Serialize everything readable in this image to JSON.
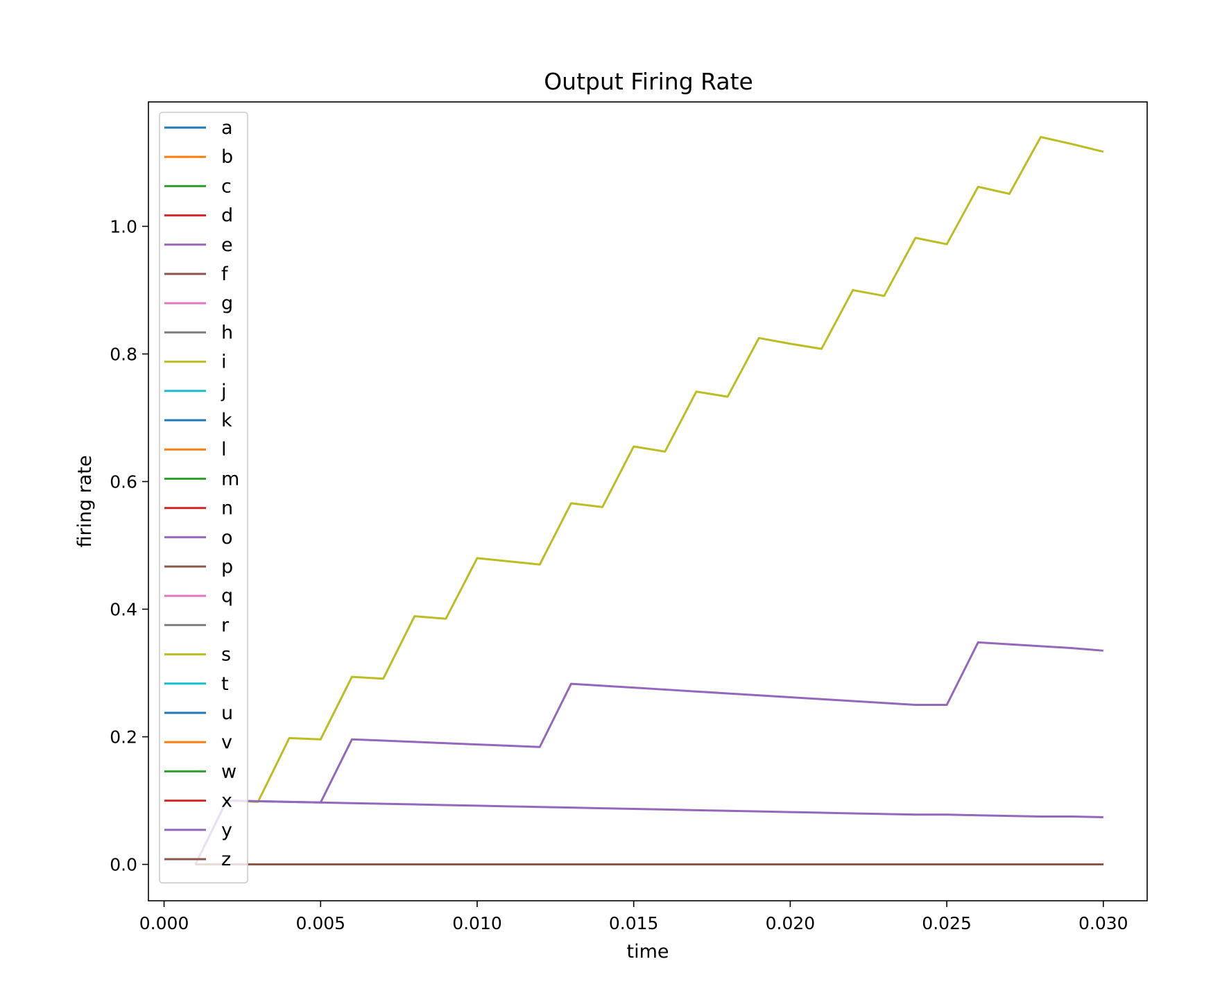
{
  "chart_data": {
    "type": "line",
    "title": "Output Firing Rate",
    "xlabel": "time",
    "ylabel": "firing rate",
    "xlim": [
      -0.0005,
      0.0314
    ],
    "ylim": [
      -0.057,
      1.195
    ],
    "xticks": [
      0.0,
      0.005,
      0.01,
      0.015,
      0.02,
      0.025,
      0.03
    ],
    "xtick_labels": [
      "0.000",
      "0.005",
      "0.010",
      "0.015",
      "0.020",
      "0.025",
      "0.030"
    ],
    "yticks": [
      0.0,
      0.2,
      0.4,
      0.6,
      0.8,
      1.0
    ],
    "ytick_labels": [
      "0.0",
      "0.2",
      "0.4",
      "0.6",
      "0.8",
      "1.0"
    ],
    "grid": false,
    "legend_position": "upper-left",
    "x": [
      0.001,
      0.002,
      0.003,
      0.004,
      0.005,
      0.006,
      0.007,
      0.008,
      0.009,
      0.01,
      0.011,
      0.012,
      0.013,
      0.014,
      0.015,
      0.016,
      0.017,
      0.018,
      0.019,
      0.02,
      0.021,
      0.022,
      0.023,
      0.024,
      0.025,
      0.026,
      0.027,
      0.028,
      0.029,
      0.03
    ],
    "series": [
      {
        "name": "a",
        "color": "#1f77b4",
        "values": [
          0,
          0,
          0,
          0,
          0,
          0,
          0,
          0,
          0,
          0,
          0,
          0,
          0,
          0,
          0,
          0,
          0,
          0,
          0,
          0,
          0,
          0,
          0,
          0,
          0,
          0,
          0,
          0,
          0,
          0
        ]
      },
      {
        "name": "b",
        "color": "#ff7f0e",
        "values": [
          0,
          0,
          0,
          0,
          0,
          0,
          0,
          0,
          0,
          0,
          0,
          0,
          0,
          0,
          0,
          0,
          0,
          0,
          0,
          0,
          0,
          0,
          0,
          0,
          0,
          0,
          0,
          0,
          0,
          0
        ]
      },
      {
        "name": "c",
        "color": "#2ca02c",
        "values": [
          0,
          0,
          0,
          0,
          0,
          0,
          0,
          0,
          0,
          0,
          0,
          0,
          0,
          0,
          0,
          0,
          0,
          0,
          0,
          0,
          0,
          0,
          0,
          0,
          0,
          0,
          0,
          0,
          0,
          0
        ]
      },
      {
        "name": "d",
        "color": "#d62728",
        "values": [
          0,
          0,
          0,
          0,
          0,
          0,
          0,
          0,
          0,
          0,
          0,
          0,
          0,
          0,
          0,
          0,
          0,
          0,
          0,
          0,
          0,
          0,
          0,
          0,
          0,
          0,
          0,
          0,
          0,
          0
        ]
      },
      {
        "name": "e",
        "color": "#9467bd",
        "values": [
          0,
          0.1,
          0.099,
          0.098,
          0.097,
          0.196,
          0.194,
          0.192,
          0.19,
          0.188,
          0.186,
          0.184,
          0.283,
          0.28,
          0.277,
          0.274,
          0.271,
          0.268,
          0.265,
          0.262,
          0.259,
          0.256,
          0.253,
          0.25,
          0.25,
          0.348,
          0.345,
          0.342,
          0.339,
          0.335
        ]
      },
      {
        "name": "f",
        "color": "#8c564b",
        "values": [
          0,
          0,
          0,
          0,
          0,
          0,
          0,
          0,
          0,
          0,
          0,
          0,
          0,
          0,
          0,
          0,
          0,
          0,
          0,
          0,
          0,
          0,
          0,
          0,
          0,
          0,
          0,
          0,
          0,
          0
        ]
      },
      {
        "name": "g",
        "color": "#e377c2",
        "values": [
          0,
          0,
          0,
          0,
          0,
          0,
          0,
          0,
          0,
          0,
          0,
          0,
          0,
          0,
          0,
          0,
          0,
          0,
          0,
          0,
          0,
          0,
          0,
          0,
          0,
          0,
          0,
          0,
          0,
          0
        ]
      },
      {
        "name": "h",
        "color": "#7f7f7f",
        "values": [
          0,
          0,
          0,
          0,
          0,
          0,
          0,
          0,
          0,
          0,
          0,
          0,
          0,
          0,
          0,
          0,
          0,
          0,
          0,
          0,
          0,
          0,
          0,
          0,
          0,
          0,
          0,
          0,
          0,
          0
        ]
      },
      {
        "name": "i",
        "color": "#bcbd22",
        "values": [
          0,
          0.1,
          0.098,
          0.198,
          0.196,
          0.294,
          0.291,
          0.389,
          0.385,
          0.48,
          0.475,
          0.47,
          0.566,
          0.56,
          0.655,
          0.647,
          0.741,
          0.733,
          0.825,
          0.816,
          0.808,
          0.9,
          0.891,
          0.982,
          0.972,
          1.062,
          1.051,
          1.14,
          1.129,
          1.117
        ]
      },
      {
        "name": "j",
        "color": "#17becf",
        "values": [
          0,
          0,
          0,
          0,
          0,
          0,
          0,
          0,
          0,
          0,
          0,
          0,
          0,
          0,
          0,
          0,
          0,
          0,
          0,
          0,
          0,
          0,
          0,
          0,
          0,
          0,
          0,
          0,
          0,
          0
        ]
      },
      {
        "name": "k",
        "color": "#1f77b4",
        "values": [
          0,
          0,
          0,
          0,
          0,
          0,
          0,
          0,
          0,
          0,
          0,
          0,
          0,
          0,
          0,
          0,
          0,
          0,
          0,
          0,
          0,
          0,
          0,
          0,
          0,
          0,
          0,
          0,
          0,
          0
        ]
      },
      {
        "name": "l",
        "color": "#ff7f0e",
        "values": [
          0,
          0,
          0,
          0,
          0,
          0,
          0,
          0,
          0,
          0,
          0,
          0,
          0,
          0,
          0,
          0,
          0,
          0,
          0,
          0,
          0,
          0,
          0,
          0,
          0,
          0,
          0,
          0,
          0,
          0
        ]
      },
      {
        "name": "m",
        "color": "#2ca02c",
        "values": [
          0,
          0,
          0,
          0,
          0,
          0,
          0,
          0,
          0,
          0,
          0,
          0,
          0,
          0,
          0,
          0,
          0,
          0,
          0,
          0,
          0,
          0,
          0,
          0,
          0,
          0,
          0,
          0,
          0,
          0
        ]
      },
      {
        "name": "n",
        "color": "#d62728",
        "values": [
          0,
          0,
          0,
          0,
          0,
          0,
          0,
          0,
          0,
          0,
          0,
          0,
          0,
          0,
          0,
          0,
          0,
          0,
          0,
          0,
          0,
          0,
          0,
          0,
          0,
          0,
          0,
          0,
          0,
          0
        ]
      },
      {
        "name": "o",
        "color": "#9467bd",
        "values": [
          0,
          0,
          0,
          0,
          0,
          0,
          0,
          0,
          0,
          0,
          0,
          0,
          0,
          0,
          0,
          0,
          0,
          0,
          0,
          0,
          0,
          0,
          0,
          0,
          0,
          0,
          0,
          0,
          0,
          0
        ]
      },
      {
        "name": "p",
        "color": "#8c564b",
        "values": [
          0,
          0,
          0,
          0,
          0,
          0,
          0,
          0,
          0,
          0,
          0,
          0,
          0,
          0,
          0,
          0,
          0,
          0,
          0,
          0,
          0,
          0,
          0,
          0,
          0,
          0,
          0,
          0,
          0,
          0
        ]
      },
      {
        "name": "q",
        "color": "#e377c2",
        "values": [
          0,
          0,
          0,
          0,
          0,
          0,
          0,
          0,
          0,
          0,
          0,
          0,
          0,
          0,
          0,
          0,
          0,
          0,
          0,
          0,
          0,
          0,
          0,
          0,
          0,
          0,
          0,
          0,
          0,
          0
        ]
      },
      {
        "name": "r",
        "color": "#7f7f7f",
        "values": [
          0,
          0,
          0,
          0,
          0,
          0,
          0,
          0,
          0,
          0,
          0,
          0,
          0,
          0,
          0,
          0,
          0,
          0,
          0,
          0,
          0,
          0,
          0,
          0,
          0,
          0,
          0,
          0,
          0,
          0
        ]
      },
      {
        "name": "s",
        "color": "#bcbd22",
        "values": [
          0,
          0,
          0,
          0,
          0,
          0,
          0,
          0,
          0,
          0,
          0,
          0,
          0,
          0,
          0,
          0,
          0,
          0,
          0,
          0,
          0,
          0,
          0,
          0,
          0,
          0,
          0,
          0,
          0,
          0
        ]
      },
      {
        "name": "t",
        "color": "#17becf",
        "values": [
          0,
          0,
          0,
          0,
          0,
          0,
          0,
          0,
          0,
          0,
          0,
          0,
          0,
          0,
          0,
          0,
          0,
          0,
          0,
          0,
          0,
          0,
          0,
          0,
          0,
          0,
          0,
          0,
          0,
          0
        ]
      },
      {
        "name": "u",
        "color": "#1f77b4",
        "values": [
          0,
          0,
          0,
          0,
          0,
          0,
          0,
          0,
          0,
          0,
          0,
          0,
          0,
          0,
          0,
          0,
          0,
          0,
          0,
          0,
          0,
          0,
          0,
          0,
          0,
          0,
          0,
          0,
          0,
          0
        ]
      },
      {
        "name": "v",
        "color": "#ff7f0e",
        "values": [
          0,
          0,
          0,
          0,
          0,
          0,
          0,
          0,
          0,
          0,
          0,
          0,
          0,
          0,
          0,
          0,
          0,
          0,
          0,
          0,
          0,
          0,
          0,
          0,
          0,
          0,
          0,
          0,
          0,
          0
        ]
      },
      {
        "name": "w",
        "color": "#2ca02c",
        "values": [
          0,
          0,
          0,
          0,
          0,
          0,
          0,
          0,
          0,
          0,
          0,
          0,
          0,
          0,
          0,
          0,
          0,
          0,
          0,
          0,
          0,
          0,
          0,
          0,
          0,
          0,
          0,
          0,
          0,
          0
        ]
      },
      {
        "name": "x",
        "color": "#d62728",
        "values": [
          0,
          0,
          0,
          0,
          0,
          0,
          0,
          0,
          0,
          0,
          0,
          0,
          0,
          0,
          0,
          0,
          0,
          0,
          0,
          0,
          0,
          0,
          0,
          0,
          0,
          0,
          0,
          0,
          0,
          0
        ]
      },
      {
        "name": "y",
        "color": "#9467bd",
        "values": [
          0,
          0.1,
          0.099,
          0.098,
          0.097,
          0.096,
          0.095,
          0.094,
          0.093,
          0.092,
          0.091,
          0.09,
          0.089,
          0.088,
          0.087,
          0.086,
          0.085,
          0.084,
          0.083,
          0.082,
          0.081,
          0.08,
          0.079,
          0.078,
          0.078,
          0.077,
          0.076,
          0.075,
          0.075,
          0.074
        ]
      },
      {
        "name": "z",
        "color": "#8c564b",
        "values": [
          0,
          0,
          0,
          0,
          0,
          0,
          0,
          0,
          0,
          0,
          0,
          0,
          0,
          0,
          0,
          0,
          0,
          0,
          0,
          0,
          0,
          0,
          0,
          0,
          0,
          0,
          0,
          0,
          0,
          0
        ]
      }
    ]
  }
}
